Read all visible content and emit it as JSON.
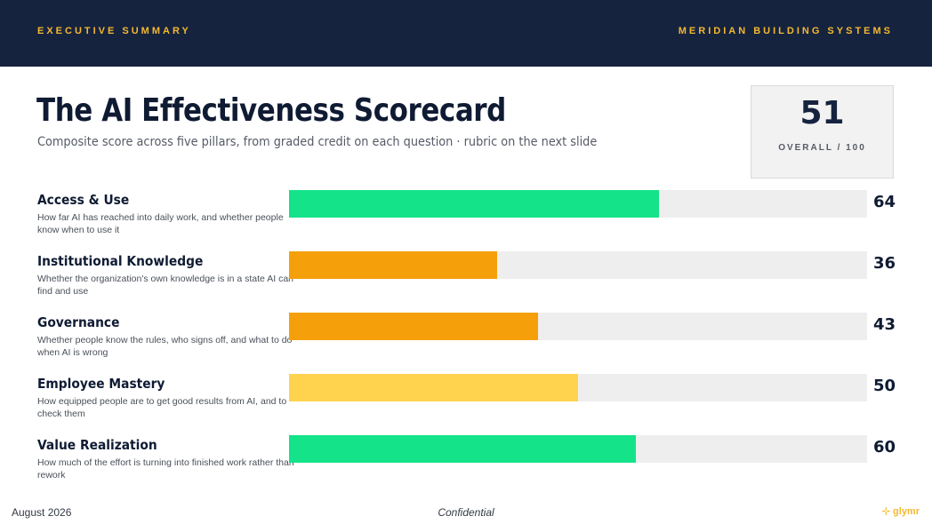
{
  "header": {
    "left": "EXECUTIVE SUMMARY",
    "right": "MERIDIAN BUILDING SYSTEMS"
  },
  "title": "The AI Effectiveness Scorecard",
  "subtitle": "Composite score across five pillars, from graded credit on each question · rubric on the next slide",
  "overall": {
    "value": "51",
    "label": "OVERALL / 100"
  },
  "footer": {
    "date": "August 2026",
    "confidentiality": "Confidential",
    "logo": "⊹ glymr"
  },
  "colors": {
    "green": "#14e38a",
    "orange": "#f5a00a",
    "yellow": "#ffd34e",
    "track": "#eeeeee",
    "navy": "#15233f"
  },
  "chart_data": {
    "type": "bar",
    "orientation": "horizontal",
    "xlim": [
      0,
      100
    ],
    "grid": false,
    "categories": [
      "Access & Use",
      "Institutional Knowledge",
      "Governance",
      "Employee Mastery",
      "Value Realization"
    ],
    "descriptions": [
      "How far AI has reached into daily work, and whether people know when to use it",
      "Whether the organization's own knowledge is in a state AI can find and use",
      "Whether people know the rules, who signs off, and what to do when AI is wrong",
      "How equipped people are to get good results from AI, and to check them",
      "How much of the effort is turning into finished work rather than rework"
    ],
    "values": [
      64,
      36,
      43,
      50,
      60
    ],
    "bar_colors": [
      "#14e38a",
      "#f5a00a",
      "#f5a00a",
      "#ffd34e",
      "#14e38a"
    ]
  }
}
